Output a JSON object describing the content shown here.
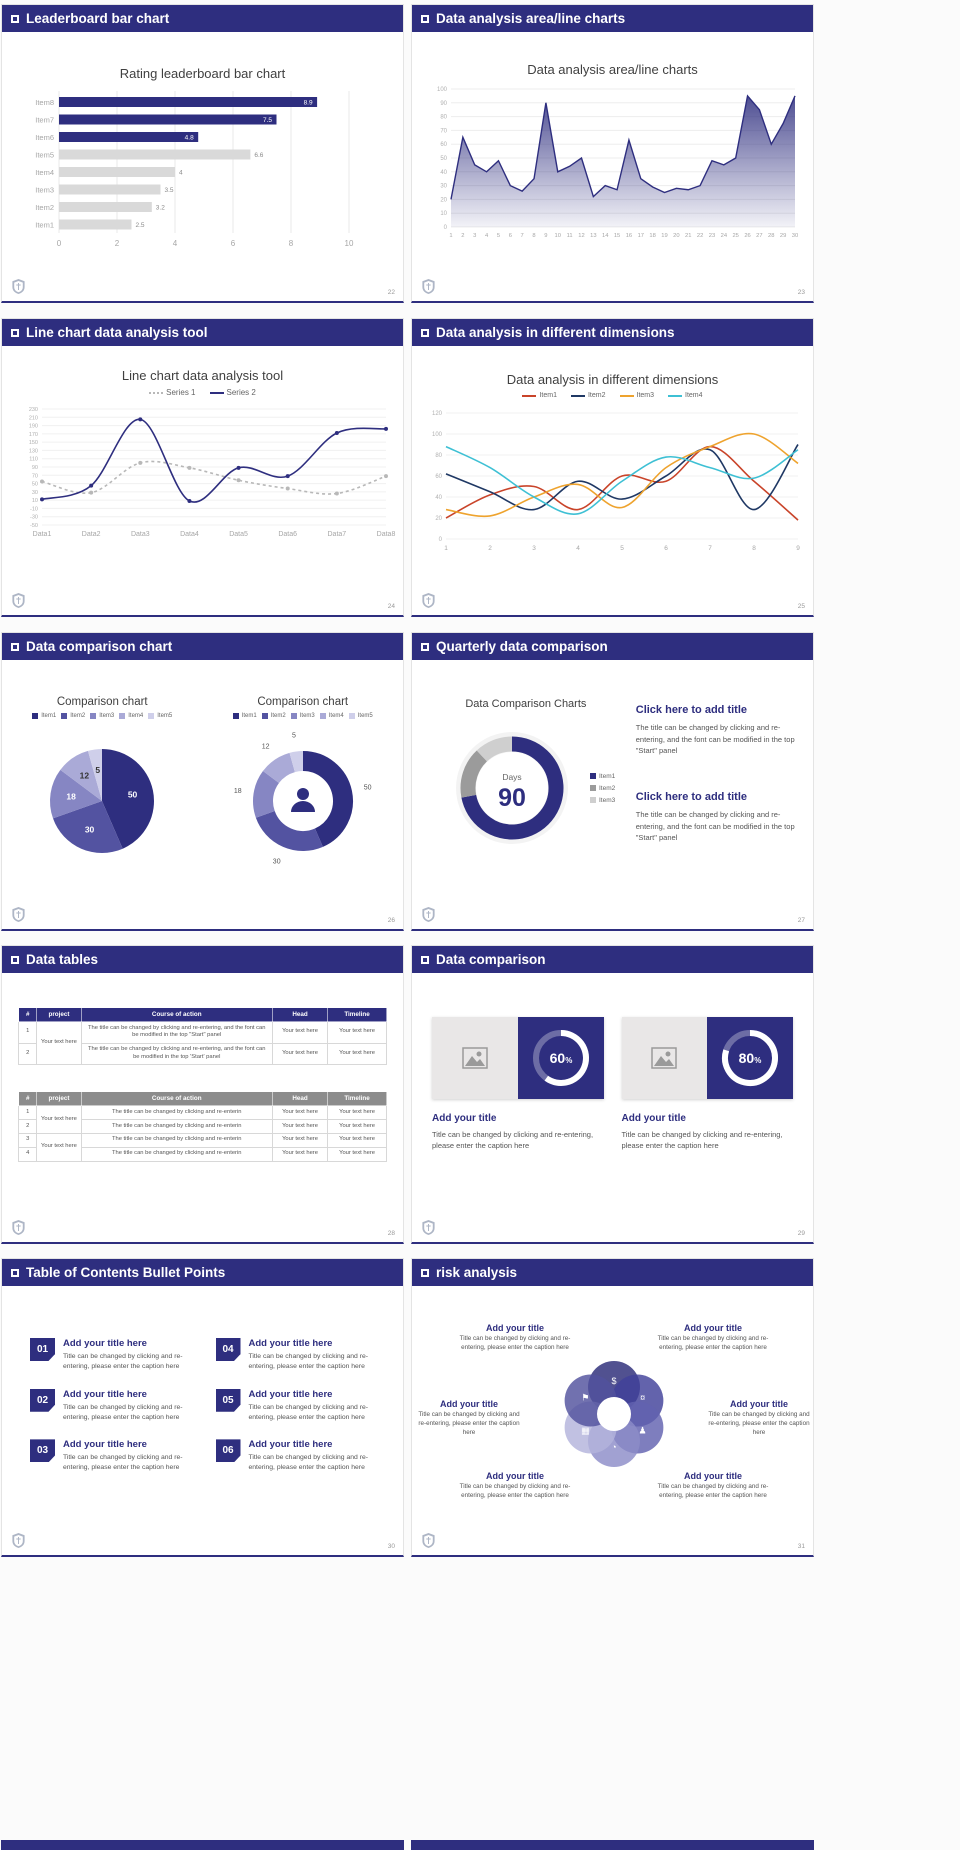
{
  "colors": {
    "accent": "#2e2e7f",
    "gray_bar": "#d9d9d9"
  },
  "slides": {
    "s22": {
      "page": "22",
      "header": "Leaderboard bar chart",
      "chart": {
        "type": "bar",
        "title": "Rating leaderboard bar chart",
        "categories": [
          "Item1",
          "Item2",
          "Item3",
          "Item4",
          "Item5",
          "Item6",
          "Item7",
          "Item8"
        ],
        "values": [
          2.5,
          3.2,
          3.5,
          4,
          6.6,
          4.8,
          7.5,
          8.9
        ],
        "highlight": [
          "Item6",
          "Item7",
          "Item8"
        ],
        "xticks": [
          0,
          2,
          4,
          6,
          8,
          10
        ],
        "xlim": [
          0,
          10
        ],
        "bar_color": "#d9d9d9",
        "highlight_color": "#2e2e7f"
      }
    },
    "s23": {
      "page": "23",
      "header": "Data analysis area/line charts",
      "chart": {
        "type": "area",
        "title": "Data analysis area/line charts",
        "x": [
          1,
          2,
          3,
          4,
          5,
          6,
          7,
          8,
          9,
          10,
          11,
          12,
          13,
          14,
          15,
          16,
          17,
          18,
          19,
          20,
          21,
          22,
          23,
          24,
          25,
          26,
          27,
          28,
          29,
          30
        ],
        "values": [
          20,
          65,
          45,
          40,
          48,
          30,
          26,
          35,
          90,
          40,
          44,
          50,
          22,
          30,
          27,
          63,
          35,
          29,
          25,
          28,
          27,
          30,
          48,
          45,
          50,
          95,
          85,
          60,
          75,
          95
        ],
        "ymax": 100,
        "ystep": 10,
        "color": "#2e2e7f"
      }
    },
    "s24": {
      "page": "24",
      "header": "Line chart data analysis tool",
      "chart": {
        "type": "line",
        "title": "Line chart data analysis tool",
        "x": [
          "Data1",
          "Data2",
          "Data3",
          "Data4",
          "Data5",
          "Data6",
          "Data7",
          "Data8"
        ],
        "ymin": -50,
        "ymax": 230,
        "ystep": 20,
        "series": [
          {
            "name": "Series 1",
            "color": "#b8b8b8",
            "dash": "3 3",
            "dots": true,
            "values": [
              55,
              28,
              100,
              88,
              58,
              38,
              26,
              68
            ]
          },
          {
            "name": "Series 2",
            "color": "#2e2e7f",
            "dots": true,
            "values": [
              12,
              45,
              205,
              8,
              88,
              68,
              172,
              182
            ]
          }
        ]
      }
    },
    "s25": {
      "page": "25",
      "header": "Data analysis in different dimensions",
      "chart": {
        "type": "line",
        "title": "Data analysis in different dimensions",
        "x": [
          "1",
          "2",
          "3",
          "4",
          "5",
          "6",
          "7",
          "8",
          "9"
        ],
        "ymin": 0,
        "ymax": 120,
        "ystep": 20,
        "series": [
          {
            "name": "Item1",
            "color": "#c9442a",
            "values": [
              20,
              42,
              50,
              28,
              60,
              55,
              88,
              55,
              18
            ]
          },
          {
            "name": "Item2",
            "color": "#1f3864",
            "values": [
              62,
              45,
              28,
              55,
              38,
              60,
              85,
              28,
              90
            ]
          },
          {
            "name": "Item3",
            "color": "#eea32e",
            "values": [
              28,
              22,
              40,
              52,
              30,
              68,
              88,
              100,
              72
            ]
          },
          {
            "name": "Item4",
            "color": "#3ec0d4",
            "values": [
              88,
              68,
              40,
              24,
              55,
              78,
              68,
              58,
              85
            ]
          }
        ]
      }
    },
    "s26": {
      "page": "26",
      "header": "Data comparison chart",
      "pie": {
        "type": "pie",
        "title": "Comparison chart",
        "legend": [
          "Item1",
          "Item2",
          "Item3",
          "Item4",
          "Item5"
        ],
        "values": [
          50,
          30,
          18,
          12,
          5
        ],
        "colors": [
          "#2e2e7f",
          "#5353a1",
          "#8686c3",
          "#aaaad7",
          "#cfcfea"
        ],
        "label_colors": [
          "#ffffff",
          "#ffffff",
          "#ffffff",
          "#333333",
          "#333333"
        ]
      },
      "donut": {
        "type": "donut",
        "title": "Comparison chart",
        "legend": [
          "Item1",
          "Item2",
          "Item3",
          "Item4",
          "Item5"
        ],
        "values": [
          50,
          30,
          18,
          12,
          5
        ],
        "colors": [
          "#2e2e7f",
          "#5353a1",
          "#8686c3",
          "#aaaad7",
          "#cfcfea"
        ]
      }
    },
    "s27": {
      "page": "27",
      "header": "Quarterly data comparison",
      "donut": {
        "type": "donut",
        "title": "Data Comparison Charts",
        "center_label": "Days",
        "center_value": "90",
        "legend": [
          "Item1",
          "Item2",
          "Item3"
        ],
        "values": [
          72,
          16,
          12
        ],
        "colors": [
          "#2e2e7f",
          "#9b9b9b",
          "#cfcfcf"
        ]
      },
      "blocks": [
        {
          "title": "Click here to add title",
          "body": "The title can be changed by clicking and re-entering, and the font can be modified in the top \"Start\" panel"
        },
        {
          "title": "Click here to add title",
          "body": "The title can be changed by clicking and re-entering, and the font can be modified in the top \"Start\" panel"
        }
      ]
    },
    "s28": {
      "page": "28",
      "header": "Data tables",
      "table1": {
        "header_bg": "#2e2e7f",
        "headers": [
          "#",
          "project",
          "Course of action",
          "Head",
          "Timeline"
        ],
        "rows": [
          [
            {
              "t": "1"
            },
            {
              "t": "Your text here",
              "rs": 2
            },
            {
              "t": "The title can be changed by clicking and re-entering, and the font can be modified in the top \"Start\" panel"
            },
            {
              "t": "Your text here"
            },
            {
              "t": "Your text here"
            }
          ],
          [
            {
              "t": "2"
            },
            null,
            {
              "t": "The title can be changed by clicking and re-entering, and the font can be modified in the top 'Start' panel"
            },
            {
              "t": "Your text here"
            },
            {
              "t": "Your text here"
            }
          ]
        ]
      },
      "table2": {
        "header_bg": "#8c8c8c",
        "headers": [
          "#",
          "project",
          "Course of action",
          "Head",
          "Timeline"
        ],
        "rows": [
          [
            {
              "t": "1"
            },
            {
              "t": "Your text here",
              "rs": 2
            },
            {
              "t": "The title can be changed by clicking and re-enterin"
            },
            {
              "t": "Your text here"
            },
            {
              "t": "Your text here"
            }
          ],
          [
            {
              "t": "2"
            },
            null,
            {
              "t": "The title can be changed by clicking and re-enterin"
            },
            {
              "t": "Your text here"
            },
            {
              "t": "Your text here"
            }
          ],
          [
            {
              "t": "3"
            },
            {
              "t": "Your text here",
              "rs": 2
            },
            {
              "t": "The title can be changed by clicking and re-enterin"
            },
            {
              "t": "Your text here"
            },
            {
              "t": "Your text here"
            }
          ],
          [
            {
              "t": "4"
            },
            null,
            {
              "t": "The title can be changed by clicking and re-enterin"
            },
            {
              "t": "Your text here"
            },
            {
              "t": "Your text here"
            }
          ]
        ]
      }
    },
    "s29": {
      "page": "29",
      "header": "Data comparison",
      "cards": [
        {
          "percent": 60,
          "title": "Add your title",
          "caption": "Title can be changed by clicking and re-entering, please enter the caption here"
        },
        {
          "percent": 80,
          "title": "Add your title",
          "caption": "Title can be changed by clicking and re-entering, please enter the caption here"
        }
      ]
    },
    "s30": {
      "page": "30",
      "header": "Table of Contents Bullet Points",
      "items": [
        {
          "num": "01",
          "title": "Add your title here",
          "caption": "Title can be changed by clicking and re-entering, please enter the caption here"
        },
        {
          "num": "02",
          "title": "Add your title here",
          "caption": "Title can be changed by clicking and re-entering, please enter the caption here"
        },
        {
          "num": "03",
          "title": "Add your title here",
          "caption": "Title can be changed by clicking and re-entering, please enter the caption here"
        },
        {
          "num": "04",
          "title": "Add your title here",
          "caption": "Title can be changed by clicking and re-entering, please enter the caption here"
        },
        {
          "num": "05",
          "title": "Add your title here",
          "caption": "Title can be changed by clicking and re-entering, please enter the caption here"
        },
        {
          "num": "06",
          "title": "Add your title here",
          "caption": "Title can be changed by clicking and re-entering, please enter the caption here"
        }
      ]
    },
    "s31": {
      "page": "31",
      "header": "risk analysis",
      "labels": [
        {
          "title": "Add your title",
          "caption": "Title can be changed by clicking and re-entering, please enter the caption here"
        },
        {
          "title": "Add your title",
          "caption": "Title can be changed by clicking and re-entering, please enter the caption here"
        },
        {
          "title": "Add your title",
          "caption": "Title can be changed by clicking and re-entering, please enter the caption here"
        },
        {
          "title": "Add your title",
          "caption": "Title can be changed by clicking and re-entering, please enter the caption here"
        },
        {
          "title": "Add your title",
          "caption": "Title can be changed by clicking and re-entering, please enter the caption here"
        },
        {
          "title": "Add your title",
          "caption": "Title can be changed by clicking and re-entering, please enter the caption here"
        }
      ],
      "petal_colors": [
        "#2b2b77",
        "#41419a",
        "#6262b0",
        "#8c8cc8",
        "#b3b3dc",
        "#52529e"
      ],
      "icons": [
        {
          "name": "money-bag-icon",
          "glyph": "$"
        },
        {
          "name": "coins-icon",
          "glyph": "¤"
        },
        {
          "name": "people-icon",
          "glyph": "♟"
        },
        {
          "name": "chart-icon",
          "glyph": "◔"
        },
        {
          "name": "building-icon",
          "glyph": "▦"
        },
        {
          "name": "flag-icon",
          "glyph": "⚑"
        }
      ]
    }
  }
}
